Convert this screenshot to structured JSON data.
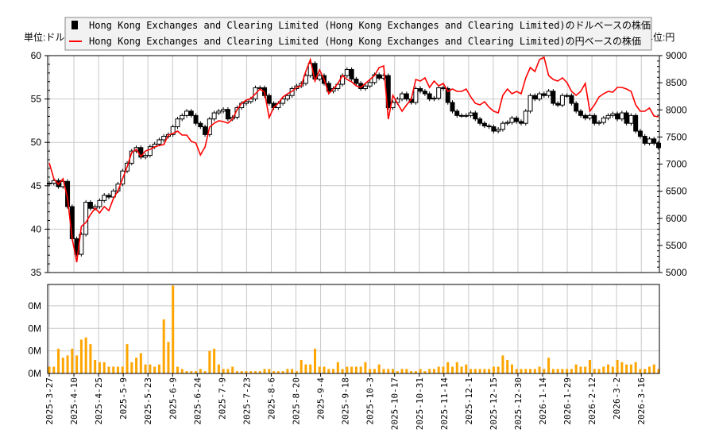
{
  "chart_data": [
    {
      "type": "candlestick+line",
      "legend": {
        "placement": "top",
        "entries": [
          {
            "label": "Hong Kong Exchanges and Clearing Limited (Hong Kong Exchanges and Clearing Limited)のドルベースの株価",
            "color": "#000000"
          },
          {
            "label": "Hong Kong Exchanges and Clearing Limited (Hong Kong Exchanges and Clearing Limited)の円ベースの株価",
            "color": "#ff0000"
          }
        ]
      },
      "ylabel_left": "単位:ドル",
      "ylabel_right": "単位:円",
      "ylim_left": [
        35,
        60
      ],
      "yticks_left": [
        35,
        40,
        45,
        50,
        55,
        60
      ],
      "ylim_right": [
        5000,
        9000
      ],
      "yticks_right": [
        5000,
        5500,
        6000,
        6500,
        7000,
        7500,
        8000,
        8500,
        9000
      ],
      "grid": true,
      "x_range": [
        "2025-3-27",
        "2026-3-26"
      ],
      "xticks": [
        "2025-3-27",
        "2025-4-10",
        "2025-4-25",
        "2025-5-9",
        "2025-5-23",
        "2025-6-9",
        "2025-6-24",
        "2025-7-9",
        "2025-7-23",
        "2025-8-6",
        "2025-8-20",
        "2025-9-4",
        "2025-9-18",
        "2025-10-3",
        "2025-10-17",
        "2025-10-31",
        "2025-11-14",
        "2025-12-1",
        "2025-12-15",
        "2025-12-30",
        "2026-1-14",
        "2026-1-29",
        "2026-2-12",
        "2026-3-2",
        "2026-3-16"
      ],
      "usd_close": [
        45.3,
        45.6,
        44.9,
        45.5,
        42.6,
        38.9,
        37.1,
        39.4,
        43.1,
        42.4,
        42.6,
        43.3,
        43.9,
        43.7,
        44.4,
        45.2,
        46.7,
        47.6,
        49.0,
        49.4,
        48.3,
        48.5,
        49.5,
        49.8,
        50.3,
        50.7,
        50.9,
        51.8,
        52.7,
        53.1,
        53.6,
        53.1,
        52.2,
        51.8,
        50.9,
        52.7,
        53.4,
        53.6,
        53.8,
        52.7,
        52.9,
        54.0,
        54.5,
        54.7,
        55.0,
        56.3,
        56.3,
        55.4,
        54.5,
        54.0,
        54.5,
        55.0,
        55.4,
        56.2,
        56.5,
        56.8,
        57.7,
        59.1,
        57.3,
        57.7,
        56.8,
        55.9,
        56.2,
        56.7,
        57.7,
        58.4,
        57.3,
        56.8,
        56.2,
        56.5,
        56.9,
        57.8,
        57.4,
        57.7,
        54.0,
        54.6,
        55.0,
        55.6,
        55.0,
        54.6,
        56.2,
        55.9,
        55.6,
        55.0,
        55.1,
        56.3,
        56.2,
        54.6,
        53.6,
        53.1,
        53.1,
        53.1,
        53.4,
        52.7,
        52.2,
        51.9,
        51.8,
        51.3,
        51.5,
        52.2,
        52.3,
        52.8,
        52.4,
        52.2,
        53.6,
        55.4,
        55.0,
        55.6,
        55.4,
        55.9,
        54.5,
        54.3,
        55.4,
        55.4,
        54.5,
        53.6,
        53.1,
        52.8,
        53.1,
        52.2,
        52.3,
        52.8,
        53.1,
        53.3,
        52.7,
        53.4,
        52.2,
        53.1,
        51.3,
        50.7,
        49.9,
        50.4,
        49.9,
        49.4
      ],
      "jpy_close": [
        7022,
        6729,
        6627,
        6729,
        6363,
        5630,
        5191,
        5850,
        5923,
        6070,
        6187,
        6099,
        6216,
        6143,
        6363,
        6509,
        6729,
        6949,
        7213,
        7271,
        7139,
        7242,
        7271,
        7315,
        7345,
        7359,
        7535,
        7564,
        7608,
        7535,
        7535,
        7418,
        7388,
        7169,
        7315,
        7681,
        7755,
        7799,
        7784,
        7755,
        7828,
        8004,
        8121,
        8180,
        8209,
        8297,
        8385,
        8326,
        7857,
        8048,
        8121,
        8238,
        8297,
        8341,
        8414,
        8443,
        8707,
        8927,
        8531,
        8736,
        8560,
        8297,
        8385,
        8487,
        8634,
        8560,
        8517,
        8443,
        8414,
        8487,
        8560,
        8634,
        8780,
        8810,
        7828,
        8267,
        8121,
        7974,
        8092,
        8194,
        8560,
        8531,
        8590,
        8414,
        8531,
        8443,
        8487,
        8341,
        8385,
        8341,
        8341,
        8385,
        8238,
        8121,
        8092,
        8150,
        8048,
        7974,
        7945,
        8267,
        8385,
        8297,
        8341,
        8297,
        8590,
        8780,
        8707,
        8927,
        8971,
        8634,
        8560,
        8531,
        8590,
        8502,
        8341,
        8267,
        8341,
        8487,
        7974,
        8092,
        8238,
        8297,
        8341,
        8326,
        8414,
        8414,
        8385,
        8341,
        8092,
        7974,
        7974,
        8034,
        7887,
        7872
      ],
      "colors": {
        "up_candle": "#ffffff",
        "down_candle": "#000000",
        "yen_line": "#ff0000",
        "volume": "#ffa500",
        "grid": "#c8c8c8"
      }
    },
    {
      "type": "bar",
      "yticks": [
        0,
        1,
        2,
        3
      ],
      "ytick_labels": [
        "0M",
        "0M",
        "0M",
        "0M"
      ],
      "ylim": [
        0,
        3.95
      ],
      "volume": [
        0.3,
        0.3,
        1.1,
        0.7,
        0.8,
        1.1,
        0.8,
        1.5,
        1.6,
        1.3,
        0.6,
        0.5,
        0.5,
        0.3,
        0.3,
        0.3,
        0.3,
        1.3,
        0.5,
        0.7,
        0.9,
        0.4,
        0.4,
        0.3,
        0.4,
        2.4,
        1.4,
        3.9,
        0.3,
        0.2,
        0.1,
        0.1,
        0.1,
        0.2,
        0.1,
        1.0,
        1.1,
        0.4,
        0.2,
        0.2,
        0.3,
        0.1,
        0.1,
        0.1,
        0.1,
        0.1,
        0.1,
        0.2,
        0.2,
        0.1,
        0.1,
        0.1,
        0.2,
        0.2,
        0.1,
        0.6,
        0.4,
        0.4,
        1.1,
        0.3,
        0.3,
        0.2,
        0.2,
        0.5,
        0.2,
        0.3,
        0.3,
        0.3,
        0.3,
        0.5,
        0.2,
        0.2,
        0.4,
        0.2,
        0.2,
        0.2,
        0.1,
        0.2,
        0.2,
        0.1,
        0.1,
        0.2,
        0.1,
        0.2,
        0.2,
        0.3,
        0.3,
        0.5,
        0.3,
        0.5,
        0.3,
        0.4,
        0.2,
        0.2,
        0.2,
        0.2,
        0.2,
        0.3,
        0.3,
        0.8,
        0.6,
        0.4,
        0.2,
        0.2,
        0.2,
        0.2,
        0.2,
        0.3,
        0.2,
        0.7,
        0.2,
        0.2,
        0.2,
        0.2,
        0.2,
        0.4,
        0.3,
        0.3,
        0.6,
        0.2,
        0.2,
        0.3,
        0.4,
        0.3,
        0.6,
        0.5,
        0.4,
        0.4,
        0.5,
        0.2,
        0.2,
        0.3,
        0.4,
        0.2
      ]
    }
  ]
}
